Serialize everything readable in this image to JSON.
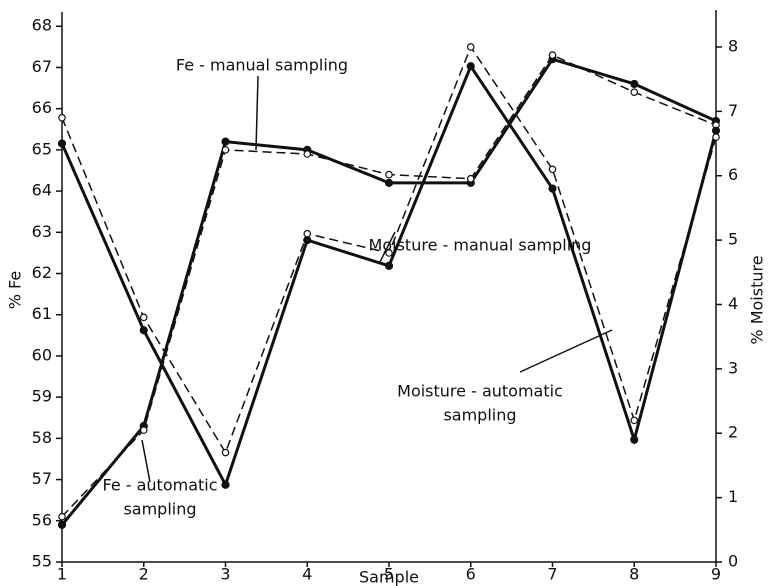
{
  "chart_data": {
    "type": "line",
    "xlabel": "Sample",
    "ylabel": "% Fe",
    "y2label": "% Moisture",
    "x": [
      1,
      2,
      3,
      4,
      5,
      6,
      7,
      8,
      9
    ],
    "xlim": [
      1,
      9
    ],
    "xticks": [
      1,
      2,
      3,
      4,
      5,
      6,
      7,
      8,
      9
    ],
    "ylim": [
      55,
      68.2
    ],
    "yticks": [
      55,
      56,
      57,
      58,
      59,
      60,
      61,
      62,
      63,
      64,
      65,
      66,
      67,
      68
    ],
    "y2lim": [
      0,
      8.45
    ],
    "y2ticks": [
      0,
      1,
      2,
      3,
      4,
      5,
      6,
      7,
      8
    ],
    "grid": false,
    "series": [
      {
        "name": "Fe - manual sampling",
        "color": "#111111",
        "line_style": "solid",
        "marker": "filled",
        "values": [
          55.9,
          58.3,
          65.2,
          65.0,
          64.2,
          64.2,
          67.2,
          66.6,
          65.7
        ]
      },
      {
        "name": "Fe - automatic sampling",
        "color": "#111111",
        "line_style": "dashed",
        "marker": "open",
        "values": [
          56.1,
          58.2,
          65.0,
          64.9,
          64.4,
          64.3,
          67.3,
          66.4,
          65.6
        ]
      },
      {
        "name": "Moisture - manual sampling",
        "color": "#111111",
        "line_style": "solid",
        "marker": "filled",
        "axis": "y2",
        "values": [
          6.5,
          3.6,
          1.2,
          5.0,
          4.6,
          7.7,
          5.8,
          1.9,
          6.7
        ]
      },
      {
        "name": "Moisture - automatic sampling",
        "color": "#111111",
        "line_style": "dashed",
        "marker": "open",
        "axis": "y2",
        "values": [
          6.9,
          3.8,
          1.7,
          5.1,
          4.8,
          8.0,
          6.1,
          2.2,
          6.6
        ]
      }
    ],
    "annotations": [
      [
        "Fe - manual sampling"
      ],
      [
        "Fe - automatic",
        "sampling"
      ],
      [
        "Moisture - manual sampling"
      ],
      [
        "Moisture - automatic",
        "sampling"
      ]
    ]
  }
}
